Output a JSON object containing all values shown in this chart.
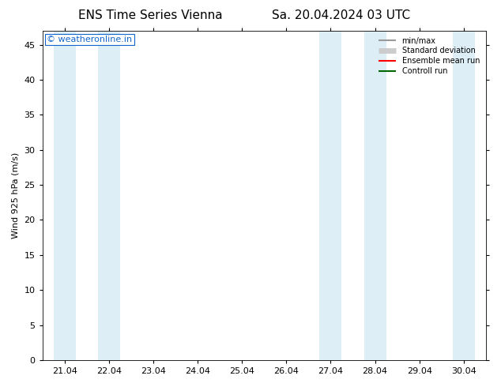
{
  "title_left": "ENS Time Series Vienna",
  "title_right": "Sa. 20.04.2024 03 UTC",
  "ylabel": "Wind 925 hPa (m/s)",
  "ylim": [
    0,
    47
  ],
  "yticks": [
    0,
    5,
    10,
    15,
    20,
    25,
    30,
    35,
    40,
    45
  ],
  "xlabels": [
    "21.04",
    "22.04",
    "23.04",
    "24.04",
    "25.04",
    "26.04",
    "27.04",
    "28.04",
    "29.04",
    "30.04"
  ],
  "x_positions": [
    1,
    2,
    3,
    4,
    5,
    6,
    7,
    8,
    9,
    10
  ],
  "xlim": [
    0.5,
    10.5
  ],
  "shaded_bands": [
    [
      0.75,
      1.25
    ],
    [
      1.75,
      2.25
    ],
    [
      6.75,
      7.25
    ],
    [
      7.75,
      8.25
    ],
    [
      9.75,
      10.25
    ]
  ],
  "shaded_color": "#ddeef6",
  "background_color": "#ffffff",
  "plot_bg_color": "#ffffff",
  "watermark_text": "© weatheronline.in",
  "watermark_color": "#1166cc",
  "legend_items": [
    {
      "label": "min/max",
      "color": "#999999",
      "lw": 1.5
    },
    {
      "label": "Standard deviation",
      "color": "#cccccc",
      "lw": 5
    },
    {
      "label": "Ensemble mean run",
      "color": "#ff0000",
      "lw": 1.5
    },
    {
      "label": "Controll run",
      "color": "#006600",
      "lw": 1.5
    }
  ],
  "title_fontsize": 11,
  "axis_label_fontsize": 8,
  "tick_fontsize": 8,
  "watermark_fontsize": 8
}
